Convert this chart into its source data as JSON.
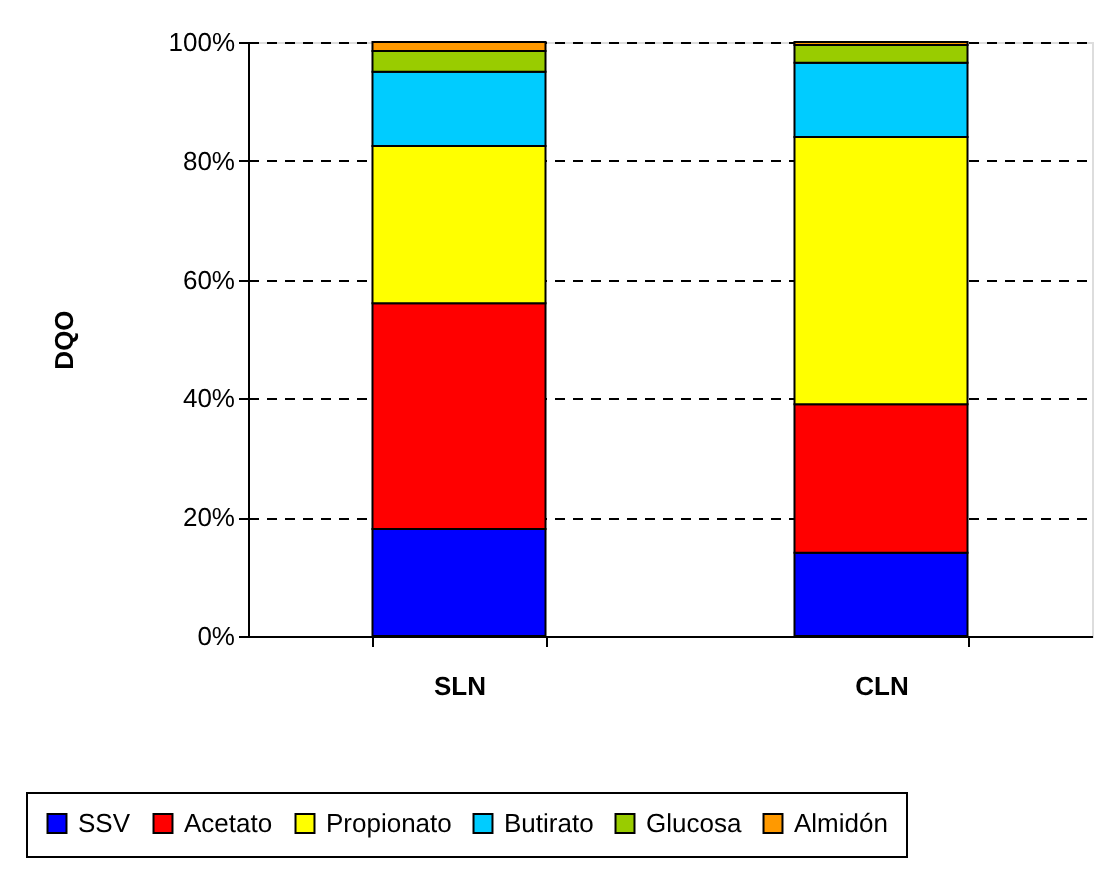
{
  "chart_data": {
    "type": "bar",
    "ylabel": "DQO",
    "categories": [
      "SLN",
      "CLN"
    ],
    "stacked": true,
    "series": [
      {
        "name": "SSV",
        "color": "#0000ff",
        "values": [
          18,
          14
        ]
      },
      {
        "name": "Acetato",
        "color": "#ff0000",
        "values": [
          38,
          25
        ]
      },
      {
        "name": "Propionato",
        "color": "#ffff00",
        "values": [
          26.5,
          45
        ]
      },
      {
        "name": "Butirato",
        "color": "#00ccff",
        "values": [
          12.5,
          12.5
        ]
      },
      {
        "name": "Glucosa",
        "color": "#99cc00",
        "values": [
          3.5,
          3
        ]
      },
      {
        "name": "Almidón",
        "color": "#ff9900",
        "values": [
          1.5,
          0.5
        ]
      }
    ],
    "ylim": [
      0,
      100
    ],
    "yticks": [
      {
        "value": 0,
        "label": "0%"
      },
      {
        "value": 20,
        "label": "20%"
      },
      {
        "value": 40,
        "label": "40%"
      },
      {
        "value": 60,
        "label": "60%"
      },
      {
        "value": 80,
        "label": "80%"
      },
      {
        "value": 100,
        "label": "100%"
      }
    ],
    "grid": "y",
    "legend": "bottom"
  }
}
